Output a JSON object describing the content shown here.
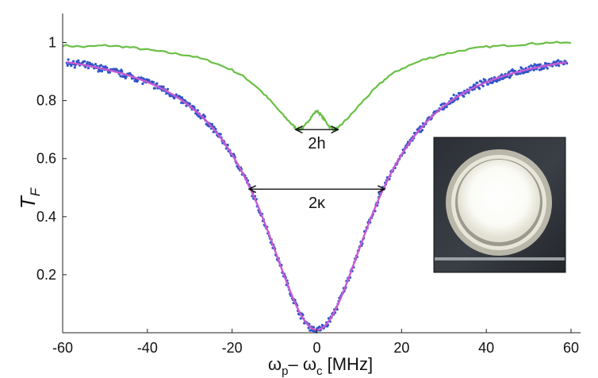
{
  "chart_data": {
    "type": "scatter",
    "title": "",
    "xlabel": {
      "omega": "ω",
      "sub_p": "p",
      "minus": "– ",
      "sub_c": "c",
      "unit": " [MHz]"
    },
    "ylabel": {
      "main": "T",
      "sub": "F"
    },
    "xlim": [
      -60,
      60
    ],
    "ylim": [
      0,
      1.1
    ],
    "xticks": [
      -60,
      -40,
      -20,
      0,
      20,
      40,
      60
    ],
    "yticks": [
      0.2,
      0.4,
      0.6,
      0.8,
      1
    ],
    "grid": false,
    "legend": "none",
    "colors": {
      "upper_trace": "#6abf45",
      "points": "#2f55c8",
      "fit": "#c85ad2"
    },
    "series": [
      {
        "kind": "line",
        "color": "#6abf45",
        "x": [
          -60,
          -55,
          -50,
          -45,
          -40,
          -35,
          -30,
          -25,
          -20,
          -17,
          -14,
          -11,
          -8,
          -6,
          -5,
          -4,
          -3,
          -2,
          -1,
          0,
          1,
          2,
          3,
          4,
          5,
          6,
          8,
          11,
          14,
          17,
          20,
          25,
          30,
          35,
          40,
          45,
          50,
          55,
          60
        ],
        "y": [
          0.99,
          0.985,
          0.99,
          0.985,
          0.975,
          0.965,
          0.955,
          0.935,
          0.905,
          0.88,
          0.845,
          0.8,
          0.75,
          0.72,
          0.705,
          0.7,
          0.71,
          0.73,
          0.75,
          0.765,
          0.75,
          0.73,
          0.71,
          0.7,
          0.705,
          0.72,
          0.75,
          0.8,
          0.845,
          0.885,
          0.91,
          0.94,
          0.96,
          0.975,
          0.985,
          0.99,
          0.995,
          1.0,
          0.998
        ]
      },
      {
        "kind": "points",
        "color": "#2f55c8",
        "model": "lorentzian",
        "x_range": [
          -59,
          59
        ],
        "count": 700,
        "center": 0,
        "half_width": 16,
        "depth": 0.99,
        "noise": 0.01
      },
      {
        "kind": "line",
        "color": "#c85ad2",
        "model": "lorentzian",
        "x_range": [
          -59,
          59
        ],
        "center": 0,
        "half_width": 16,
        "depth": 0.99
      }
    ],
    "annotations": [
      {
        "text": "2h",
        "x_from": -5,
        "x_to": 5,
        "y": 0.7
      },
      {
        "text": "2κ",
        "x_from": -16,
        "x_to": 16,
        "y": 0.495
      }
    ]
  }
}
